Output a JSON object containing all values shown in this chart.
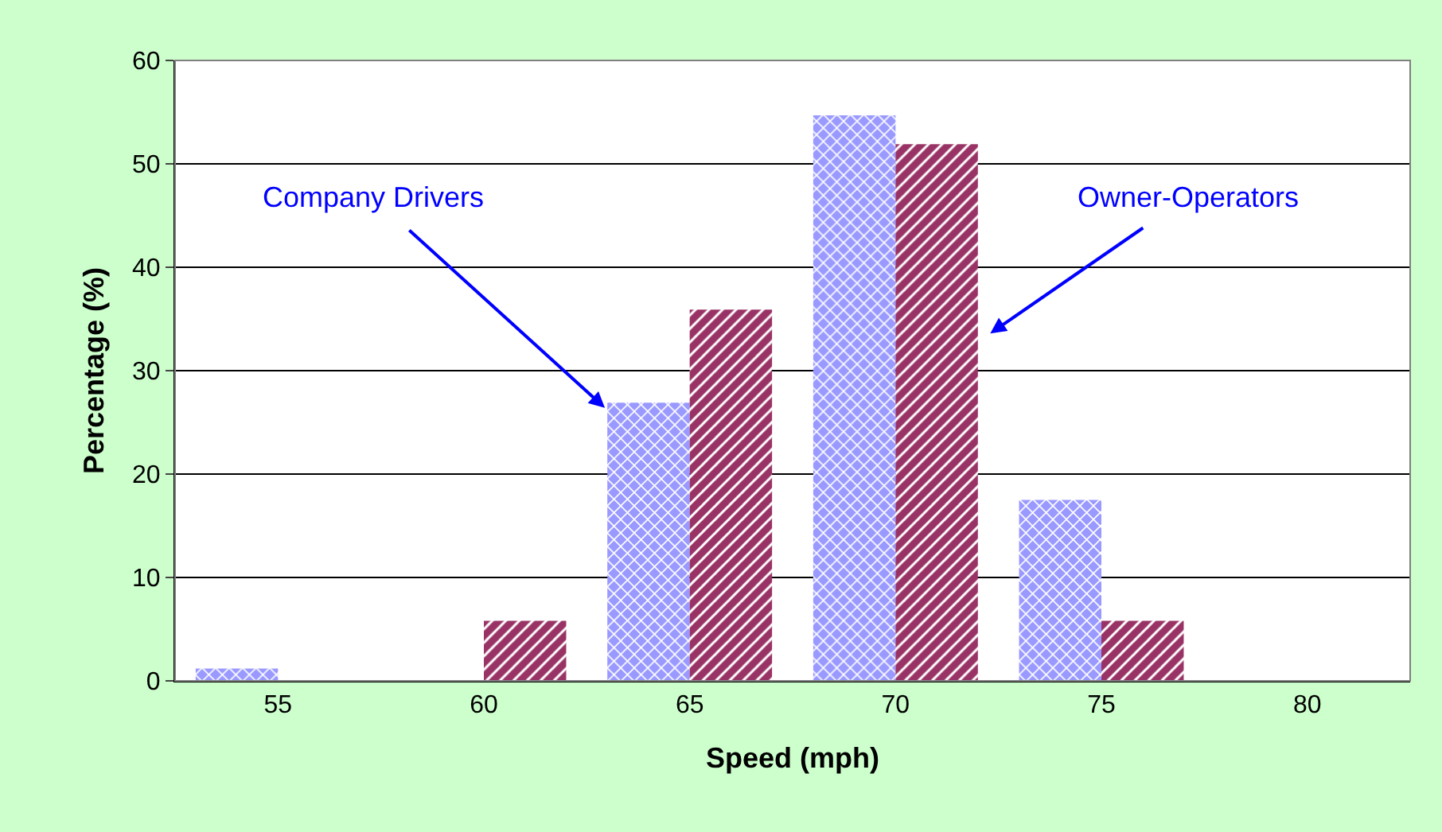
{
  "chart_data": {
    "type": "bar",
    "xlabel": "Speed (mph)",
    "ylabel": "Percentage (%)",
    "categories": [
      "55",
      "60",
      "65",
      "70",
      "75",
      "80"
    ],
    "series": [
      {
        "name": "Company Drivers",
        "color": "#9999ff",
        "values": [
          1.2,
          0,
          26.9,
          54.7,
          17.5,
          0
        ]
      },
      {
        "name": "Owner-Operators",
        "color": "#993366",
        "values": [
          0,
          5.8,
          35.9,
          51.9,
          5.8,
          0
        ]
      }
    ],
    "ylim": [
      0,
      60
    ],
    "yticks": [
      0,
      10,
      20,
      30,
      40,
      50,
      60
    ],
    "grid": "y",
    "legend": false
  }
}
